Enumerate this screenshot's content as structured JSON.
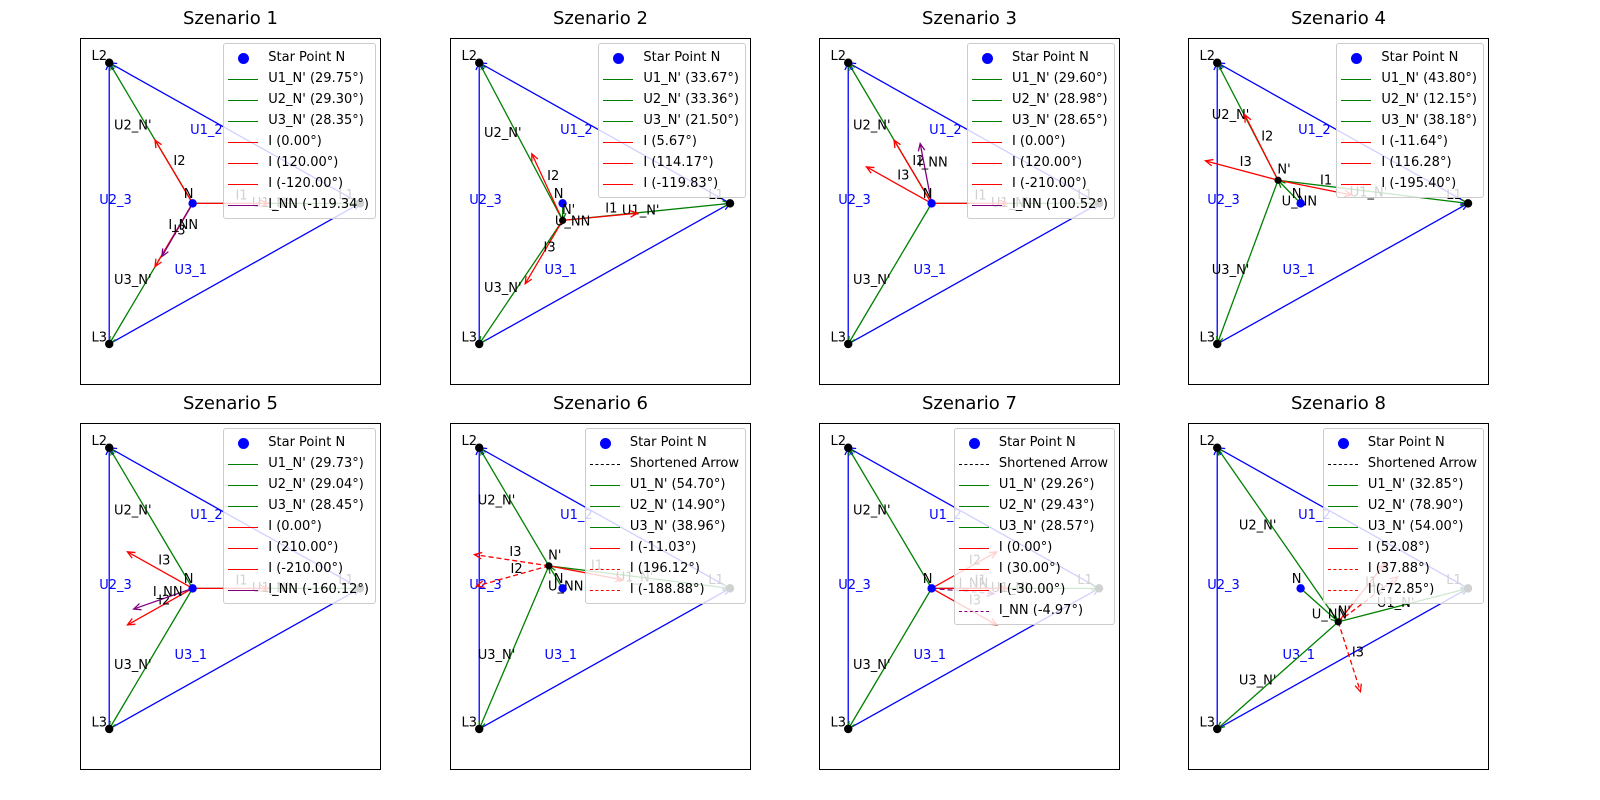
{
  "figure": {
    "panels": [
      {
        "title": "Szenario 1",
        "nprime": null,
        "vectors": [
          {
            "label": "U1_N'",
            "color": "#008000",
            "style": "solid",
            "kind": "voltage"
          },
          {
            "label": "U2_N'",
            "color": "#008000",
            "style": "solid",
            "kind": "voltage"
          },
          {
            "label": "U3_N'",
            "color": "#008000",
            "style": "solid",
            "kind": "voltage"
          },
          {
            "label": "I1",
            "color": "#ff0000",
            "style": "solid",
            "kind": "current",
            "angle": 0.0
          },
          {
            "label": "I2",
            "color": "#ff0000",
            "style": "solid",
            "kind": "current",
            "angle": 120.0
          },
          {
            "label": "I3",
            "color": "#ff0000",
            "style": "solid",
            "kind": "current",
            "angle": -120.0
          },
          {
            "label": "I_NN",
            "color": "#800080",
            "style": "solid",
            "kind": "current",
            "angle": -119.34
          }
        ],
        "legend": [
          {
            "label": "Star Point N",
            "marker": "dot",
            "color": "#0000ff"
          },
          {
            "label": "U1_N' (29.75°)",
            "marker": "line",
            "color": "#008000"
          },
          {
            "label": "U2_N' (29.30°)",
            "marker": "line",
            "color": "#008000"
          },
          {
            "label": "U3_N' (28.35°)",
            "marker": "line",
            "color": "#008000"
          },
          {
            "label": "I (0.00°)",
            "marker": "line",
            "color": "#ff0000"
          },
          {
            "label": "I (120.00°)",
            "marker": "line",
            "color": "#ff0000"
          },
          {
            "label": "I (-120.00°)",
            "marker": "line",
            "color": "#ff0000"
          },
          {
            "label": "I_NN (-119.34°)",
            "marker": "line",
            "color": "#800080"
          }
        ]
      },
      {
        "title": "Szenario 2",
        "nprime": {
          "label": "N'",
          "dx": 0.0,
          "dy": -0.28
        },
        "vectors": [
          {
            "label": "U1_N'",
            "color": "#008000",
            "style": "solid",
            "kind": "voltage"
          },
          {
            "label": "U2_N'",
            "color": "#008000",
            "style": "solid",
            "kind": "voltage"
          },
          {
            "label": "U3_N'",
            "color": "#008000",
            "style": "solid",
            "kind": "voltage"
          },
          {
            "label": "I1",
            "color": "#ff0000",
            "style": "solid",
            "kind": "current",
            "angle": 5.67
          },
          {
            "label": "I2",
            "color": "#ff0000",
            "style": "solid",
            "kind": "current",
            "angle": 114.17
          },
          {
            "label": "I3",
            "color": "#ff0000",
            "style": "solid",
            "kind": "current",
            "angle": -119.83
          },
          {
            "label": "U_NN",
            "color": "#008000",
            "style": "solid",
            "kind": "unn"
          }
        ],
        "legend": [
          {
            "label": "Star Point N",
            "marker": "dot",
            "color": "#0000ff"
          },
          {
            "label": "U1_N' (33.67°)",
            "marker": "line",
            "color": "#008000"
          },
          {
            "label": "U2_N' (33.36°)",
            "marker": "line",
            "color": "#008000"
          },
          {
            "label": "U3_N' (21.50°)",
            "marker": "line",
            "color": "#008000"
          },
          {
            "label": "I (5.67°)",
            "marker": "line",
            "color": "#ff0000"
          },
          {
            "label": "I (114.17°)",
            "marker": "line",
            "color": "#ff0000"
          },
          {
            "label": "I (-119.83°)",
            "marker": "line",
            "color": "#ff0000"
          }
        ]
      },
      {
        "title": "Szenario 3",
        "nprime": null,
        "vectors": [
          {
            "label": "U1_N'",
            "color": "#008000",
            "style": "solid",
            "kind": "voltage"
          },
          {
            "label": "U2_N'",
            "color": "#008000",
            "style": "solid",
            "kind": "voltage"
          },
          {
            "label": "U3_N'",
            "color": "#008000",
            "style": "solid",
            "kind": "voltage"
          },
          {
            "label": "I1",
            "color": "#ff0000",
            "style": "solid",
            "kind": "current",
            "angle": 0.0
          },
          {
            "label": "I2",
            "color": "#ff0000",
            "style": "solid",
            "kind": "current",
            "angle": 120.0
          },
          {
            "label": "I3",
            "color": "#ff0000",
            "style": "solid",
            "kind": "current",
            "angle": 150.0
          },
          {
            "label": "I_NN",
            "color": "#800080",
            "style": "solid",
            "kind": "current",
            "angle": 100.52
          }
        ],
        "legend": [
          {
            "label": "Star Point N",
            "marker": "dot",
            "color": "#0000ff"
          },
          {
            "label": "U1_N' (29.60°)",
            "marker": "line",
            "color": "#008000"
          },
          {
            "label": "U2_N' (28.98°)",
            "marker": "line",
            "color": "#008000"
          },
          {
            "label": "U3_N' (28.65°)",
            "marker": "line",
            "color": "#008000"
          },
          {
            "label": "I (0.00°)",
            "marker": "line",
            "color": "#ff0000"
          },
          {
            "label": "I (120.00°)",
            "marker": "line",
            "color": "#ff0000"
          },
          {
            "label": "I (-210.00°)",
            "marker": "line",
            "color": "#ff0000"
          },
          {
            "label": "I_NN (100.52°)",
            "marker": "line",
            "color": "#800080"
          }
        ]
      },
      {
        "title": "Szenario 4",
        "nprime": {
          "label": "N'",
          "dx": -0.36,
          "dy": 0.38
        },
        "vectors": [
          {
            "label": "U1_N'",
            "color": "#008000",
            "style": "solid",
            "kind": "voltage"
          },
          {
            "label": "U2_N'",
            "color": "#008000",
            "style": "solid",
            "kind": "voltage"
          },
          {
            "label": "U3_N'",
            "color": "#008000",
            "style": "solid",
            "kind": "voltage"
          },
          {
            "label": "I1",
            "color": "#ff0000",
            "style": "solid",
            "kind": "current",
            "angle": -11.64
          },
          {
            "label": "I2",
            "color": "#ff0000",
            "style": "solid",
            "kind": "current",
            "angle": 116.28
          },
          {
            "label": "I3",
            "color": "#ff0000",
            "style": "solid",
            "kind": "current",
            "angle": 164.6
          },
          {
            "label": "U_NN",
            "color": "#008000",
            "style": "solid",
            "kind": "unn"
          }
        ],
        "legend": [
          {
            "label": "Star Point N",
            "marker": "dot",
            "color": "#0000ff"
          },
          {
            "label": "U1_N' (43.80°)",
            "marker": "line",
            "color": "#008000"
          },
          {
            "label": "U2_N' (12.15°)",
            "marker": "line",
            "color": "#008000"
          },
          {
            "label": "U3_N' (38.18°)",
            "marker": "line",
            "color": "#008000"
          },
          {
            "label": "I (-11.64°)",
            "marker": "line",
            "color": "#ff0000"
          },
          {
            "label": "I (116.28°)",
            "marker": "line",
            "color": "#ff0000"
          },
          {
            "label": "I (-195.40°)",
            "marker": "line",
            "color": "#ff0000"
          }
        ]
      },
      {
        "title": "Szenario 5",
        "nprime": null,
        "vectors": [
          {
            "label": "U1_N'",
            "color": "#008000",
            "style": "solid",
            "kind": "voltage"
          },
          {
            "label": "U2_N'",
            "color": "#008000",
            "style": "solid",
            "kind": "voltage"
          },
          {
            "label": "U3_N'",
            "color": "#008000",
            "style": "solid",
            "kind": "voltage"
          },
          {
            "label": "I1",
            "color": "#ff0000",
            "style": "solid",
            "kind": "current",
            "angle": 0.0
          },
          {
            "label": "I2",
            "color": "#ff0000",
            "style": "solid",
            "kind": "current",
            "angle": -150.0
          },
          {
            "label": "I3",
            "color": "#ff0000",
            "style": "solid",
            "kind": "current",
            "angle": 150.0
          },
          {
            "label": "I_NN",
            "color": "#800080",
            "style": "solid",
            "kind": "current",
            "angle": -160.12
          }
        ],
        "legend": [
          {
            "label": "Star Point N",
            "marker": "dot",
            "color": "#0000ff"
          },
          {
            "label": "U1_N' (29.73°)",
            "marker": "line",
            "color": "#008000"
          },
          {
            "label": "U2_N' (29.04°)",
            "marker": "line",
            "color": "#008000"
          },
          {
            "label": "U3_N' (28.45°)",
            "marker": "line",
            "color": "#008000"
          },
          {
            "label": "I (0.00°)",
            "marker": "line",
            "color": "#ff0000"
          },
          {
            "label": "I (210.00°)",
            "marker": "line",
            "color": "#ff0000"
          },
          {
            "label": "I (-210.00°)",
            "marker": "line",
            "color": "#ff0000"
          },
          {
            "label": "I_NN (-160.12°)",
            "marker": "line",
            "color": "#800080"
          }
        ]
      },
      {
        "title": "Szenario 6",
        "nprime": {
          "label": "N'",
          "dx": -0.22,
          "dy": 0.37
        },
        "vectors": [
          {
            "label": "U1_N'",
            "color": "#008000",
            "style": "solid",
            "kind": "voltage"
          },
          {
            "label": "U2_N'",
            "color": "#008000",
            "style": "solid",
            "kind": "voltage"
          },
          {
            "label": "U3_N'",
            "color": "#008000",
            "style": "solid",
            "kind": "voltage"
          },
          {
            "label": "I1",
            "color": "#ff0000",
            "style": "solid",
            "kind": "current",
            "angle": -11.03
          },
          {
            "label": "I2",
            "color": "#ff0000",
            "style": "dashed",
            "kind": "current",
            "angle": 196.12
          },
          {
            "label": "I3",
            "color": "#ff0000",
            "style": "dashed",
            "kind": "current",
            "angle": 171.12
          },
          {
            "label": "U_NN",
            "color": "#008000",
            "style": "solid",
            "kind": "unn"
          }
        ],
        "legend": [
          {
            "label": "Star Point N",
            "marker": "dot",
            "color": "#0000ff"
          },
          {
            "label": "Shortened Arrow",
            "marker": "dash",
            "color": "#000000"
          },
          {
            "label": "U1_N' (54.70°)",
            "marker": "line",
            "color": "#008000"
          },
          {
            "label": "U2_N' (14.90°)",
            "marker": "line",
            "color": "#008000"
          },
          {
            "label": "U3_N' (38.96°)",
            "marker": "line",
            "color": "#008000"
          },
          {
            "label": "I (-11.03°)",
            "marker": "line",
            "color": "#ff0000"
          },
          {
            "label": "I (196.12°)",
            "marker": "dash",
            "color": "#ff0000"
          },
          {
            "label": "I (-188.88°)",
            "marker": "dash",
            "color": "#ff0000"
          }
        ]
      },
      {
        "title": "Szenario 7",
        "nprime": null,
        "vectors": [
          {
            "label": "U1_N'",
            "color": "#008000",
            "style": "solid",
            "kind": "voltage"
          },
          {
            "label": "U2_N'",
            "color": "#008000",
            "style": "solid",
            "kind": "voltage"
          },
          {
            "label": "U3_N'",
            "color": "#008000",
            "style": "solid",
            "kind": "voltage"
          },
          {
            "label": "I1",
            "color": "#ff0000",
            "style": "solid",
            "kind": "current",
            "angle": 0.0
          },
          {
            "label": "I2",
            "color": "#ff0000",
            "style": "solid",
            "kind": "current",
            "angle": 30.0
          },
          {
            "label": "I3",
            "color": "#ff0000",
            "style": "solid",
            "kind": "current",
            "angle": -30.0
          },
          {
            "label": "I_NN",
            "color": "#800080",
            "style": "dashed",
            "kind": "current",
            "angle": -4.97
          }
        ],
        "legend": [
          {
            "label": "Star Point N",
            "marker": "dot",
            "color": "#0000ff"
          },
          {
            "label": "Shortened Arrow",
            "marker": "dash",
            "color": "#000000"
          },
          {
            "label": "U1_N' (29.26°)",
            "marker": "line",
            "color": "#008000"
          },
          {
            "label": "U2_N' (29.43°)",
            "marker": "line",
            "color": "#008000"
          },
          {
            "label": "U3_N' (28.57°)",
            "marker": "line",
            "color": "#008000"
          },
          {
            "label": "I (0.00°)",
            "marker": "line",
            "color": "#ff0000"
          },
          {
            "label": "I (30.00°)",
            "marker": "line",
            "color": "#ff0000"
          },
          {
            "label": "I (-30.00°)",
            "marker": "line",
            "color": "#ff0000"
          },
          {
            "label": "I_NN (-4.97°)",
            "marker": "dash",
            "color": "#800080"
          }
        ]
      },
      {
        "title": "Szenario 8",
        "nprime": {
          "label": "N'",
          "dx": 0.6,
          "dy": -0.55
        },
        "vectors": [
          {
            "label": "U1_N'",
            "color": "#008000",
            "style": "solid",
            "kind": "voltage"
          },
          {
            "label": "U2_N'",
            "color": "#008000",
            "style": "solid",
            "kind": "voltage"
          },
          {
            "label": "U3_N'",
            "color": "#008000",
            "style": "solid",
            "kind": "voltage"
          },
          {
            "label": "I1",
            "color": "#ff0000",
            "style": "solid",
            "kind": "current",
            "angle": 52.08
          },
          {
            "label": "I2",
            "color": "#ff0000",
            "style": "dashed",
            "kind": "current",
            "angle": 37.88
          },
          {
            "label": "I3",
            "color": "#ff0000",
            "style": "dashed",
            "kind": "current",
            "angle": -72.85
          },
          {
            "label": "U_NN",
            "color": "#008000",
            "style": "solid",
            "kind": "unn"
          }
        ],
        "legend": [
          {
            "label": "Star Point N",
            "marker": "dot",
            "color": "#0000ff"
          },
          {
            "label": "Shortened Arrow",
            "marker": "dash",
            "color": "#000000"
          },
          {
            "label": "U1_N' (32.85°)",
            "marker": "line",
            "color": "#008000"
          },
          {
            "label": "U2_N' (78.90°)",
            "marker": "line",
            "color": "#008000"
          },
          {
            "label": "U3_N' (54.00°)",
            "marker": "line",
            "color": "#008000"
          },
          {
            "label": "I (52.08°)",
            "marker": "line",
            "color": "#ff0000"
          },
          {
            "label": "I (37.88°)",
            "marker": "dash",
            "color": "#ff0000"
          },
          {
            "label": "I (-72.85°)",
            "marker": "dash",
            "color": "#ff0000"
          }
        ]
      }
    ],
    "common": {
      "phase_labels": [
        "L1",
        "L2",
        "L3"
      ],
      "line_voltage_labels": [
        "U1_2",
        "U2_3",
        "U3_1"
      ],
      "star_point_label": "N",
      "colors": {
        "line_voltage": "#0000ff",
        "phase_voltage": "#008000",
        "current": "#ff0000",
        "neutral_current": "#800080",
        "star_point": "#0000ff",
        "vertex": "#000000"
      }
    }
  }
}
